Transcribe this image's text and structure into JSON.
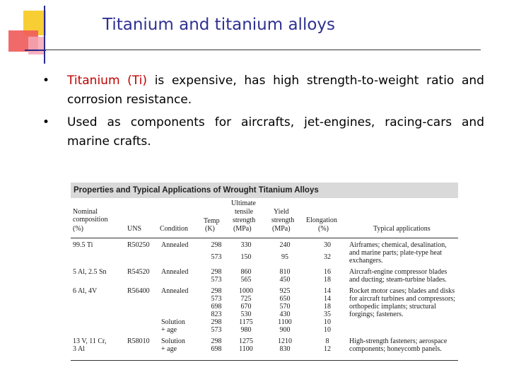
{
  "slide": {
    "title": "Titanium and titanium alloys",
    "bullets": [
      {
        "bullet": "•",
        "highlight": "Titanium (Ti)",
        "text": " is expensive, has high strength-to-weight ratio and corrosion resistance."
      },
      {
        "bullet": "•",
        "highlight": "",
        "text": "Used as components for aircrafts, jet-engines, racing-cars and marine crafts."
      }
    ],
    "colors": {
      "title": "#2e3192",
      "highlight": "#c00000"
    }
  },
  "table": {
    "title": "Properties and Typical Applications of Wrought Titanium Alloys",
    "headers": {
      "composition": [
        "Nominal",
        "composition",
        "(%)"
      ],
      "uns": "UNS",
      "condition": "Condition",
      "temp": [
        "Temp",
        "(K)"
      ],
      "uts": [
        "Ultimate",
        "tensile",
        "strength",
        "(MPa)"
      ],
      "ys": [
        "Yield",
        "strength",
        "(MPa)"
      ],
      "elong": [
        "Elongation",
        "(%)"
      ],
      "apps": "Typical applications"
    },
    "rows": [
      {
        "composition": [
          "99.5 Ti",
          ""
        ],
        "uns": "R50250",
        "condition": [
          "Annealed",
          ""
        ],
        "temp": [
          "298",
          "573"
        ],
        "uts": [
          "330",
          "150"
        ],
        "ys": [
          "240",
          "95"
        ],
        "elong": [
          "30",
          "32"
        ],
        "apps": "Airframes; chemical, desalination, and marine parts; plate-type heat exchangers."
      },
      {
        "composition": [
          "5 Al, 2.5 Sn",
          ""
        ],
        "uns": "R54520",
        "condition": [
          "Annealed",
          ""
        ],
        "temp": [
          "298",
          "573"
        ],
        "uts": [
          "860",
          "565"
        ],
        "ys": [
          "810",
          "450"
        ],
        "elong": [
          "16",
          "18"
        ],
        "apps": "Aircraft-engine compressor blades and ducting; steam-turbine blades."
      },
      {
        "composition": [
          "6 Al, 4V",
          "",
          "",
          "",
          "",
          ""
        ],
        "uns": "R56400",
        "condition": [
          "Annealed",
          "",
          "",
          "",
          "Solution",
          "+ age"
        ],
        "temp": [
          "298",
          "573",
          "698",
          "823",
          "298",
          "573"
        ],
        "uts": [
          "1000",
          "725",
          "670",
          "530",
          "1175",
          "980"
        ],
        "ys": [
          "925",
          "650",
          "570",
          "430",
          "1100",
          "900"
        ],
        "elong": [
          "14",
          "14",
          "18",
          "35",
          "10",
          "10"
        ],
        "apps": "Rocket motor cases; blades and disks for aircraft turbines and compressors; orthopedic implants; structural forgings; fasteners."
      },
      {
        "composition": [
          "13 V, 11 Cr,",
          "3 Al"
        ],
        "uns": "R58010",
        "condition": [
          "Solution",
          "+ age"
        ],
        "temp": [
          "298",
          "698"
        ],
        "uts": [
          "1275",
          "1100"
        ],
        "ys": [
          "1210",
          "830"
        ],
        "elong": [
          "8",
          "12"
        ],
        "apps": "High-strength fasteners; aerospace components; honeycomb panels."
      }
    ]
  }
}
